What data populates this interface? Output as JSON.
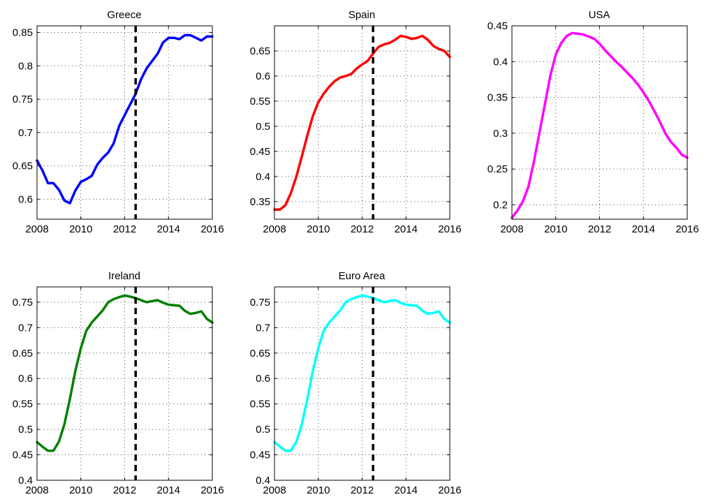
{
  "chart_data": [
    {
      "type": "line",
      "title": "Greece",
      "color": "#0000ff",
      "xlim": [
        2008,
        2016
      ],
      "ylim": [
        0.57,
        0.86
      ],
      "xticks": [
        2008,
        2010,
        2012,
        2014,
        2016
      ],
      "xtick_labels": [
        "2008",
        "2010",
        "2012",
        "2014",
        "2016"
      ],
      "yticks": [
        0.6,
        0.65,
        0.7,
        0.75,
        0.8,
        0.85
      ],
      "ytick_labels": [
        "0.6",
        "0.65",
        "0.7",
        "0.75",
        "0.8",
        "0.85"
      ],
      "grid": "dotted",
      "vline": 2012.5,
      "series": [
        {
          "x": [
            2008,
            2008.25,
            2008.5,
            2008.75,
            2009,
            2009.25,
            2009.5,
            2009.75,
            2010,
            2010.25,
            2010.5,
            2010.75,
            2011,
            2011.25,
            2011.5,
            2011.75,
            2012,
            2012.25,
            2012.5,
            2012.75,
            2013,
            2013.25,
            2013.5,
            2013.75,
            2014,
            2014.25,
            2014.5,
            2014.75,
            2015,
            2015.25,
            2015.5,
            2015.75,
            2016
          ],
          "y": [
            0.658,
            0.643,
            0.624,
            0.624,
            0.614,
            0.598,
            0.594,
            0.613,
            0.626,
            0.63,
            0.635,
            0.652,
            0.662,
            0.67,
            0.684,
            0.71,
            0.726,
            0.742,
            0.758,
            0.78,
            0.796,
            0.807,
            0.818,
            0.835,
            0.842,
            0.842,
            0.84,
            0.846,
            0.846,
            0.842,
            0.838,
            0.844,
            0.844
          ]
        }
      ]
    },
    {
      "type": "line",
      "title": "Spain",
      "color": "#ff0000",
      "xlim": [
        2008,
        2016
      ],
      "ylim": [
        0.315,
        0.7
      ],
      "xticks": [
        2008,
        2010,
        2012,
        2014,
        2016
      ],
      "xtick_labels": [
        "2008",
        "2010",
        "2012",
        "2014",
        "2016"
      ],
      "yticks": [
        0.35,
        0.4,
        0.45,
        0.5,
        0.55,
        0.6,
        0.65
      ],
      "ytick_labels": [
        "0.35",
        "0.4",
        "0.45",
        "0.5",
        "0.55",
        "0.6",
        "0.65"
      ],
      "grid": "dotted",
      "vline": 2012.5,
      "series": [
        {
          "x": [
            2008,
            2008.25,
            2008.5,
            2008.75,
            2009,
            2009.25,
            2009.5,
            2009.75,
            2010,
            2010.25,
            2010.5,
            2010.75,
            2011,
            2011.25,
            2011.5,
            2011.75,
            2012,
            2012.25,
            2012.5,
            2012.75,
            2013,
            2013.25,
            2013.5,
            2013.75,
            2014,
            2014.25,
            2014.5,
            2014.75,
            2015,
            2015.25,
            2015.5,
            2015.75,
            2016
          ],
          "y": [
            0.334,
            0.334,
            0.343,
            0.367,
            0.4,
            0.44,
            0.482,
            0.52,
            0.548,
            0.565,
            0.579,
            0.59,
            0.597,
            0.6,
            0.604,
            0.615,
            0.623,
            0.63,
            0.645,
            0.658,
            0.663,
            0.666,
            0.672,
            0.68,
            0.678,
            0.674,
            0.676,
            0.68,
            0.672,
            0.66,
            0.654,
            0.65,
            0.638
          ]
        }
      ]
    },
    {
      "type": "line",
      "title": "USA",
      "color": "#ff00ff",
      "xlim": [
        2008,
        2016
      ],
      "ylim": [
        0.18,
        0.45
      ],
      "xticks": [
        2008,
        2010,
        2012,
        2014,
        2016
      ],
      "xtick_labels": [
        "2008",
        "2010",
        "2012",
        "2014",
        "2016"
      ],
      "yticks": [
        0.2,
        0.25,
        0.3,
        0.35,
        0.4,
        0.45
      ],
      "ytick_labels": [
        "0.2",
        "0.25",
        "0.3",
        "0.35",
        "0.4",
        "0.45"
      ],
      "grid": "dotted",
      "series": [
        {
          "x": [
            2008,
            2008.25,
            2008.5,
            2008.75,
            2009,
            2009.25,
            2009.5,
            2009.75,
            2010,
            2010.25,
            2010.5,
            2010.75,
            2011,
            2011.25,
            2011.5,
            2011.75,
            2012,
            2012.25,
            2012.5,
            2012.75,
            2013,
            2013.25,
            2013.5,
            2013.75,
            2014,
            2014.25,
            2014.5,
            2014.75,
            2015,
            2015.25,
            2015.5,
            2015.75,
            2016
          ],
          "y": [
            0.182,
            0.192,
            0.205,
            0.225,
            0.26,
            0.3,
            0.34,
            0.38,
            0.41,
            0.426,
            0.436,
            0.44,
            0.439,
            0.438,
            0.435,
            0.432,
            0.425,
            0.416,
            0.408,
            0.4,
            0.393,
            0.385,
            0.377,
            0.368,
            0.357,
            0.345,
            0.331,
            0.316,
            0.3,
            0.288,
            0.28,
            0.27,
            0.266
          ]
        }
      ]
    },
    {
      "type": "line",
      "title": "Ireland",
      "color": "#008000",
      "xlim": [
        2008,
        2016
      ],
      "ylim": [
        0.4,
        0.78
      ],
      "xticks": [
        2008,
        2010,
        2012,
        2014,
        2016
      ],
      "xtick_labels": [
        "2008",
        "2010",
        "2012",
        "2014",
        "2016"
      ],
      "yticks": [
        0.4,
        0.45,
        0.5,
        0.55,
        0.6,
        0.65,
        0.7,
        0.75
      ],
      "ytick_labels": [
        "0.4",
        "0.45",
        "0.5",
        "0.55",
        "0.6",
        "0.65",
        "0.7",
        "0.75"
      ],
      "grid": "dotted",
      "vline": 2012.5,
      "series": [
        {
          "x": [
            2008,
            2008.25,
            2008.5,
            2008.75,
            2009,
            2009.25,
            2009.5,
            2009.75,
            2010,
            2010.25,
            2010.5,
            2010.75,
            2011,
            2011.25,
            2011.5,
            2011.75,
            2012,
            2012.25,
            2012.5,
            2012.75,
            2013,
            2013.25,
            2013.5,
            2013.75,
            2014,
            2014.25,
            2014.5,
            2014.75,
            2015,
            2015.25,
            2015.5,
            2015.75,
            2016
          ],
          "y": [
            0.475,
            0.466,
            0.458,
            0.458,
            0.476,
            0.51,
            0.56,
            0.615,
            0.66,
            0.694,
            0.71,
            0.722,
            0.734,
            0.75,
            0.756,
            0.76,
            0.763,
            0.761,
            0.758,
            0.754,
            0.75,
            0.752,
            0.754,
            0.749,
            0.745,
            0.744,
            0.743,
            0.733,
            0.727,
            0.729,
            0.732,
            0.717,
            0.71
          ]
        }
      ]
    },
    {
      "type": "line",
      "title": "Euro Area",
      "color": "#00ffff",
      "xlim": [
        2008,
        2016
      ],
      "ylim": [
        0.4,
        0.78
      ],
      "xticks": [
        2008,
        2010,
        2012,
        2014,
        2016
      ],
      "xtick_labels": [
        "2008",
        "2010",
        "2012",
        "2014",
        "2016"
      ],
      "yticks": [
        0.4,
        0.45,
        0.5,
        0.55,
        0.6,
        0.65,
        0.7,
        0.75
      ],
      "ytick_labels": [
        "0.4",
        "0.45",
        "0.5",
        "0.55",
        "0.6",
        "0.65",
        "0.7",
        "0.75"
      ],
      "grid": "dotted",
      "vline": 2012.5,
      "series": [
        {
          "x": [
            2008,
            2008.25,
            2008.5,
            2008.75,
            2009,
            2009.25,
            2009.5,
            2009.75,
            2010,
            2010.25,
            2010.5,
            2010.75,
            2011,
            2011.25,
            2011.5,
            2011.75,
            2012,
            2012.25,
            2012.5,
            2012.75,
            2013,
            2013.25,
            2013.5,
            2013.75,
            2014,
            2014.25,
            2014.5,
            2014.75,
            2015,
            2015.25,
            2015.5,
            2015.75,
            2016
          ],
          "y": [
            0.475,
            0.466,
            0.458,
            0.458,
            0.476,
            0.51,
            0.56,
            0.615,
            0.66,
            0.694,
            0.71,
            0.722,
            0.734,
            0.75,
            0.756,
            0.76,
            0.763,
            0.761,
            0.758,
            0.754,
            0.75,
            0.752,
            0.754,
            0.749,
            0.745,
            0.744,
            0.743,
            0.733,
            0.727,
            0.729,
            0.732,
            0.717,
            0.71
          ]
        }
      ]
    }
  ]
}
